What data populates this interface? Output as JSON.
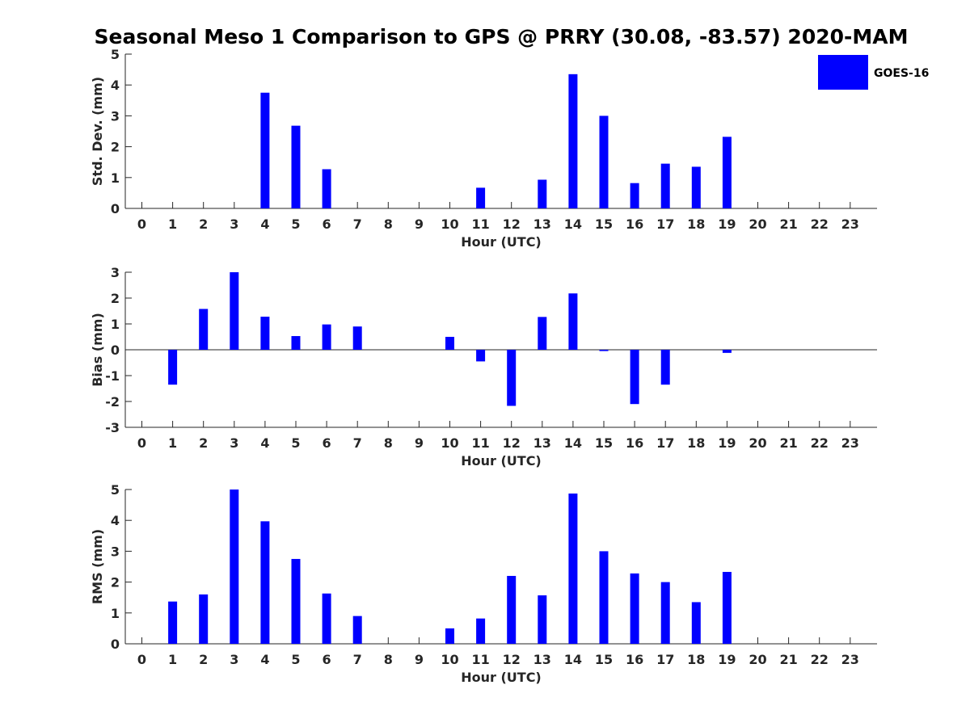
{
  "figure_title": "Seasonal Meso 1 Comparison to GPS @ PRRY (30.08, -83.57) 2020-MAM",
  "legend": {
    "label": "GOES-16",
    "color": "#0000ff"
  },
  "chart_data": [
    {
      "type": "bar",
      "title": "Seasonal Meso 1 Comparison to GPS @ PRRY (30.08, -83.57) 2020-MAM",
      "xlabel": "Hour (UTC)",
      "ylabel": "Std. Dev. (mm)",
      "ylim": [
        0,
        5
      ],
      "yticks": [
        0,
        1,
        2,
        3,
        4,
        5
      ],
      "categories": [
        "0",
        "1",
        "2",
        "3",
        "4",
        "5",
        "6",
        "7",
        "8",
        "9",
        "10",
        "11",
        "12",
        "13",
        "14",
        "15",
        "16",
        "17",
        "18",
        "19",
        "20",
        "21",
        "22",
        "23"
      ],
      "series": [
        {
          "name": "GOES-16",
          "values": [
            null,
            null,
            null,
            null,
            3.75,
            2.68,
            1.27,
            null,
            null,
            null,
            null,
            0.67,
            null,
            0.93,
            4.35,
            3.0,
            0.82,
            1.45,
            1.35,
            2.32,
            null,
            null,
            null,
            null
          ]
        }
      ],
      "zero_line": false
    },
    {
      "type": "bar",
      "xlabel": "Hour (UTC)",
      "ylabel": "Bias (mm)",
      "ylim": [
        -3,
        3
      ],
      "yticks": [
        -3,
        -2,
        -1,
        0,
        1,
        2,
        3
      ],
      "categories": [
        "0",
        "1",
        "2",
        "3",
        "4",
        "5",
        "6",
        "7",
        "8",
        "9",
        "10",
        "11",
        "12",
        "13",
        "14",
        "15",
        "16",
        "17",
        "18",
        "19",
        "20",
        "21",
        "22",
        "23"
      ],
      "series": [
        {
          "name": "GOES-16",
          "values": [
            null,
            -1.35,
            1.58,
            3.0,
            1.28,
            0.53,
            0.98,
            0.9,
            null,
            null,
            0.5,
            -0.45,
            -2.17,
            1.27,
            2.18,
            -0.05,
            -2.1,
            -1.35,
            null,
            -0.12,
            null,
            null,
            null,
            null
          ]
        }
      ],
      "zero_line": true
    },
    {
      "type": "bar",
      "xlabel": "Hour (UTC)",
      "ylabel": "RMS (mm)",
      "ylim": [
        0,
        5
      ],
      "yticks": [
        0,
        1,
        2,
        3,
        4,
        5
      ],
      "categories": [
        "0",
        "1",
        "2",
        "3",
        "4",
        "5",
        "6",
        "7",
        "8",
        "9",
        "10",
        "11",
        "12",
        "13",
        "14",
        "15",
        "16",
        "17",
        "18",
        "19",
        "20",
        "21",
        "22",
        "23"
      ],
      "series": [
        {
          "name": "GOES-16",
          "values": [
            null,
            1.37,
            1.6,
            5.0,
            3.97,
            2.75,
            1.63,
            0.9,
            null,
            null,
            0.5,
            0.82,
            2.2,
            1.57,
            4.87,
            3.0,
            2.28,
            2.0,
            1.35,
            2.33,
            null,
            null,
            null,
            null
          ]
        }
      ],
      "zero_line": false
    }
  ]
}
